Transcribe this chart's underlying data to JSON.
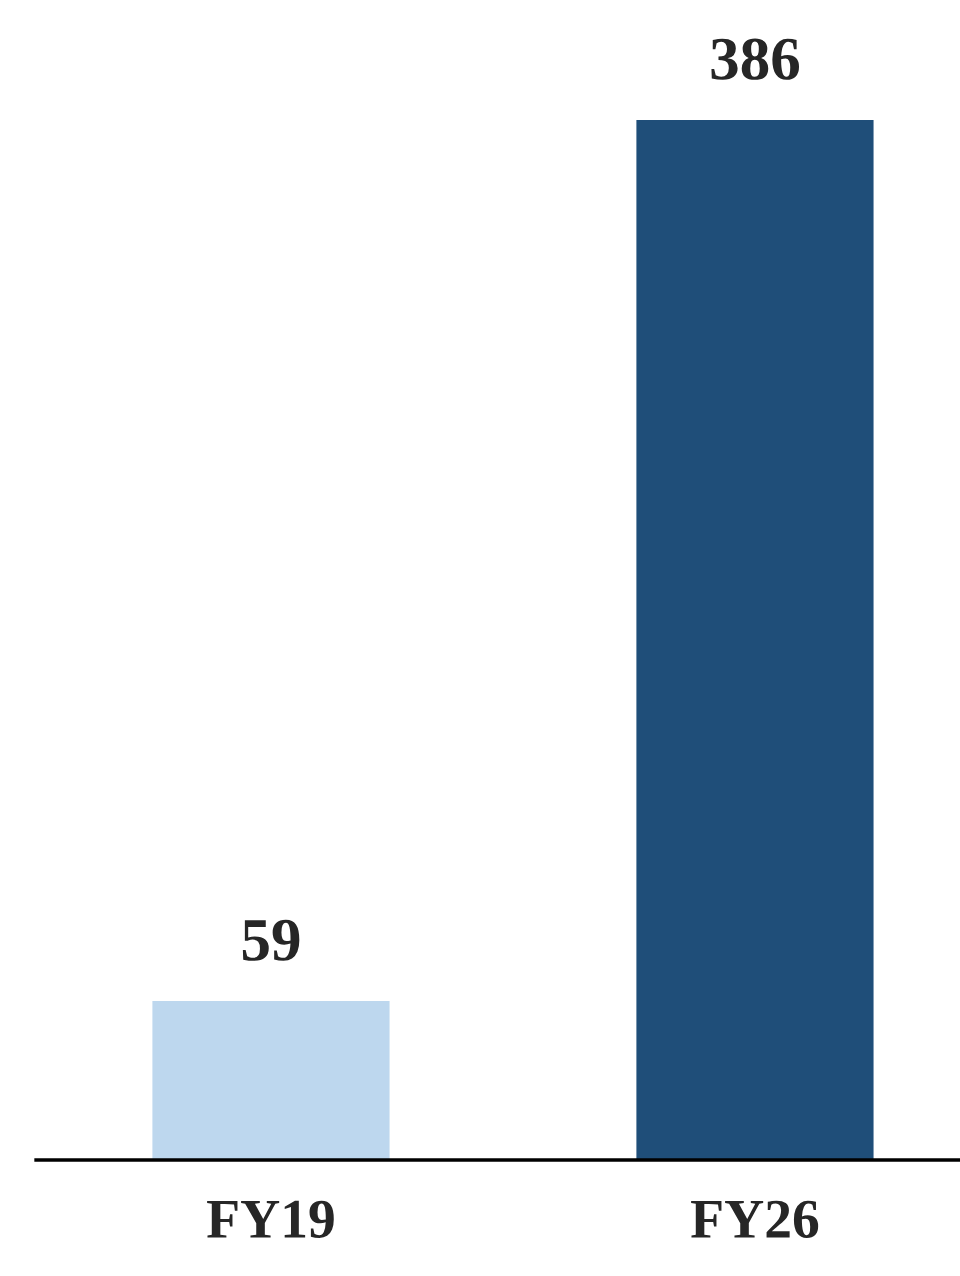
{
  "chart_data": {
    "type": "bar",
    "categories": [
      "FY19",
      "FY26"
    ],
    "values": [
      59,
      386
    ],
    "colors": [
      "#bdd7ee",
      "#1f4e79"
    ],
    "data_labels": true,
    "grid": false,
    "legend": false
  }
}
